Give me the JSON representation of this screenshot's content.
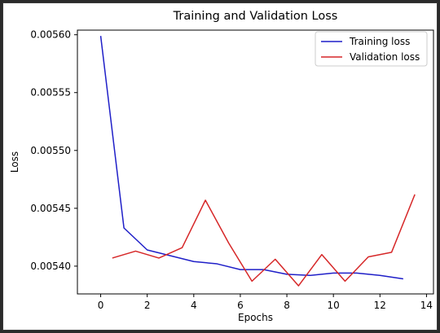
{
  "chart_data": {
    "type": "line",
    "title": "Training and Validation Loss",
    "xlabel": "Epochs",
    "ylabel": "Loss",
    "xlim": [
      -1.0,
      14.3
    ],
    "ylim": [
      0.005376,
      0.005604
    ],
    "xticks": [
      0,
      2,
      4,
      6,
      8,
      10,
      12,
      14
    ],
    "xtick_labels": [
      "0",
      "2",
      "4",
      "6",
      "8",
      "10",
      "12",
      "14"
    ],
    "yticks": [
      0.0054,
      0.00545,
      0.0055,
      0.00555,
      0.0056
    ],
    "ytick_labels": [
      "0.00540",
      "0.00545",
      "0.00550",
      "0.00555",
      "0.00560"
    ],
    "grid": false,
    "legend_position": "top-right",
    "series": [
      {
        "name": "Training loss",
        "color": "#1f1fc8",
        "x": [
          0,
          1,
          2,
          3,
          4,
          5,
          6,
          7,
          8,
          9,
          10,
          11,
          12,
          13
        ],
        "y": [
          0.005599,
          0.005433,
          0.005414,
          0.005409,
          0.005404,
          0.005402,
          0.005397,
          0.005397,
          0.005393,
          0.005392,
          0.005394,
          0.005394,
          0.005392,
          0.005389
        ]
      },
      {
        "name": "Validation loss",
        "color": "#d62728",
        "x": [
          0.5,
          1.5,
          2.5,
          3.5,
          4.5,
          5.5,
          6.5,
          7.5,
          8.5,
          9.5,
          10.5,
          11.5,
          12.5,
          13.5
        ],
        "y": [
          0.005407,
          0.005413,
          0.005407,
          0.005416,
          0.005457,
          0.00542,
          0.005387,
          0.005406,
          0.005383,
          0.00541,
          0.005387,
          0.005408,
          0.005412,
          0.005462
        ]
      }
    ]
  }
}
